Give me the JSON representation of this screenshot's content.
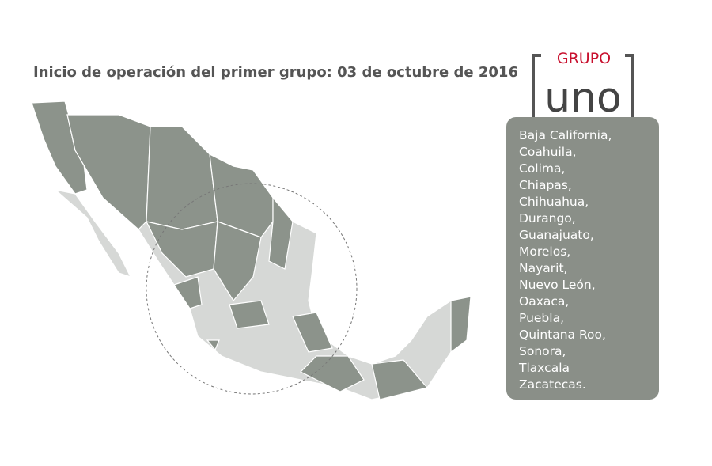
{
  "header": {
    "title": "Inicio de operación del primer grupo: 03 de octubre de 2016"
  },
  "logo": {
    "group": "GRUPO",
    "name": "uno"
  },
  "states": [
    "Baja California,",
    "Coahuila,",
    "Colima,",
    "Chiapas,",
    "Chihuahua,",
    "Durango,",
    "Guanajuato,",
    "Morelos,",
    "Nayarit,",
    "Nuevo León,",
    "Oaxaca,",
    "Puebla,",
    "Quintana Roo,",
    "Sonora,",
    "Tlaxcala",
    "Zacatecas."
  ]
}
